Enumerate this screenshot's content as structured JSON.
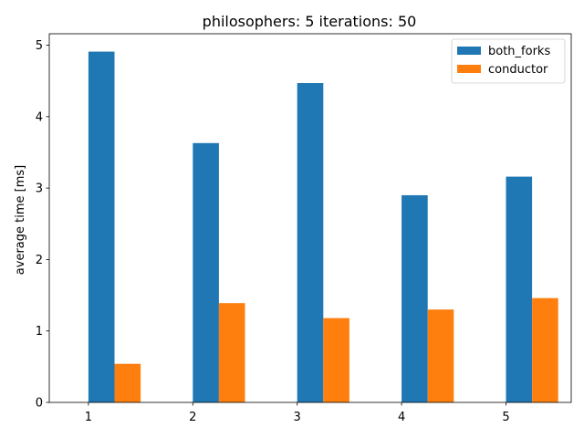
{
  "chart_data": {
    "type": "bar",
    "title": "philosophers: 5   iterations: 50",
    "xlabel": "",
    "ylabel": "average time [ms]",
    "categories": [
      "1",
      "2",
      "3",
      "4",
      "5"
    ],
    "series": [
      {
        "name": "both_forks",
        "color": "#1f77b4",
        "values": [
          4.91,
          3.63,
          4.47,
          2.9,
          3.16
        ]
      },
      {
        "name": "conductor",
        "color": "#ff7f0e",
        "values": [
          0.54,
          1.39,
          1.18,
          1.3,
          1.46
        ]
      }
    ],
    "ylim": [
      0,
      5.16
    ],
    "yticks": [
      0,
      1,
      2,
      3,
      4,
      5
    ],
    "grid": false,
    "legend_position": "top-right"
  }
}
